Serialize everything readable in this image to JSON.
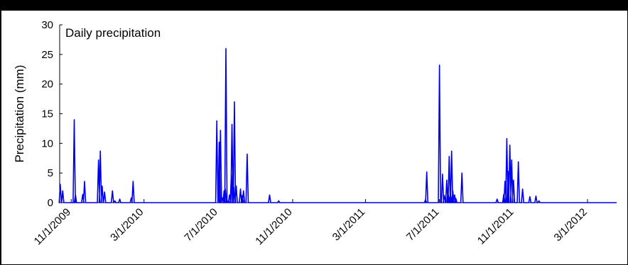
{
  "chart_data": {
    "type": "line",
    "title": "Daily precipitation",
    "xlabel": "",
    "ylabel": "Precipitation (mm)",
    "ylim": [
      0,
      30
    ],
    "yticks": [
      0,
      5,
      10,
      15,
      20,
      25,
      30
    ],
    "xlim": [
      "2009-10-13",
      "2012-04-18"
    ],
    "xticks": [
      {
        "date": "2009-11-01",
        "label": "11/1/2009"
      },
      {
        "date": "2010-03-01",
        "label": "3/1/2010"
      },
      {
        "date": "2010-07-01",
        "label": "7/1/2010"
      },
      {
        "date": "2010-11-01",
        "label": "11/1/2010"
      },
      {
        "date": "2011-03-01",
        "label": "3/1/2011"
      },
      {
        "date": "2011-07-01",
        "label": "7/1/2011"
      },
      {
        "date": "2011-11-01",
        "label": "11/1/2011"
      },
      {
        "date": "2012-03-01",
        "label": "3/1/2012"
      }
    ],
    "grid": false,
    "line_color": "#0000ee",
    "series": [
      {
        "name": "",
        "points": [
          [
            "2009-10-14",
            3.1
          ],
          [
            "2009-10-18",
            2.0
          ],
          [
            "2009-11-06",
            14.0
          ],
          [
            "2009-11-08",
            1.3
          ],
          [
            "2009-11-20",
            1.4
          ],
          [
            "2009-11-23",
            3.6
          ],
          [
            "2009-12-16",
            7.2
          ],
          [
            "2009-12-19",
            8.7
          ],
          [
            "2009-12-22",
            2.8
          ],
          [
            "2009-12-26",
            1.8
          ],
          [
            "2010-01-08",
            2.0
          ],
          [
            "2010-01-12",
            0.3
          ],
          [
            "2010-01-20",
            0.6
          ],
          [
            "2010-02-08",
            0.8
          ],
          [
            "2010-02-11",
            3.6
          ],
          [
            "2010-06-29",
            13.8
          ],
          [
            "2010-07-03",
            10.2
          ],
          [
            "2010-07-05",
            12.2
          ],
          [
            "2010-07-08",
            0.8
          ],
          [
            "2010-07-11",
            2.0
          ],
          [
            "2010-07-13",
            2.3
          ],
          [
            "2010-07-14",
            26.0
          ],
          [
            "2010-07-18",
            0.3
          ],
          [
            "2010-07-20",
            1.3
          ],
          [
            "2010-07-23",
            4.8
          ],
          [
            "2010-07-24",
            13.2
          ],
          [
            "2010-07-27",
            2.6
          ],
          [
            "2010-07-28",
            17.0
          ],
          [
            "2010-07-31",
            2.8
          ],
          [
            "2010-08-07",
            2.3
          ],
          [
            "2010-08-10",
            1.2
          ],
          [
            "2010-08-12",
            2.0
          ],
          [
            "2010-08-18",
            8.2
          ],
          [
            "2010-09-24",
            1.3
          ],
          [
            "2010-10-09",
            0.3
          ],
          [
            "2011-06-08",
            0.5
          ],
          [
            "2011-06-10",
            5.2
          ],
          [
            "2011-07-01",
            23.2
          ],
          [
            "2011-07-06",
            4.8
          ],
          [
            "2011-07-09",
            1.2
          ],
          [
            "2011-07-13",
            3.8
          ],
          [
            "2011-07-15",
            2.0
          ],
          [
            "2011-07-17",
            7.8
          ],
          [
            "2011-07-19",
            1.6
          ],
          [
            "2011-07-21",
            8.7
          ],
          [
            "2011-07-23",
            2.0
          ],
          [
            "2011-07-26",
            1.3
          ],
          [
            "2011-07-28",
            0.7
          ],
          [
            "2011-08-07",
            5.0
          ],
          [
            "2011-10-04",
            0.6
          ],
          [
            "2011-10-15",
            1.4
          ],
          [
            "2011-10-17",
            3.6
          ],
          [
            "2011-10-20",
            10.8
          ],
          [
            "2011-10-22",
            5.3
          ],
          [
            "2011-10-25",
            9.7
          ],
          [
            "2011-10-28",
            7.2
          ],
          [
            "2011-10-31",
            3.8
          ],
          [
            "2011-11-08",
            6.9
          ],
          [
            "2011-11-15",
            2.3
          ],
          [
            "2011-11-27",
            1.0
          ],
          [
            "2011-12-07",
            1.1
          ],
          [
            "2011-12-12",
            0.3
          ]
        ]
      }
    ]
  }
}
